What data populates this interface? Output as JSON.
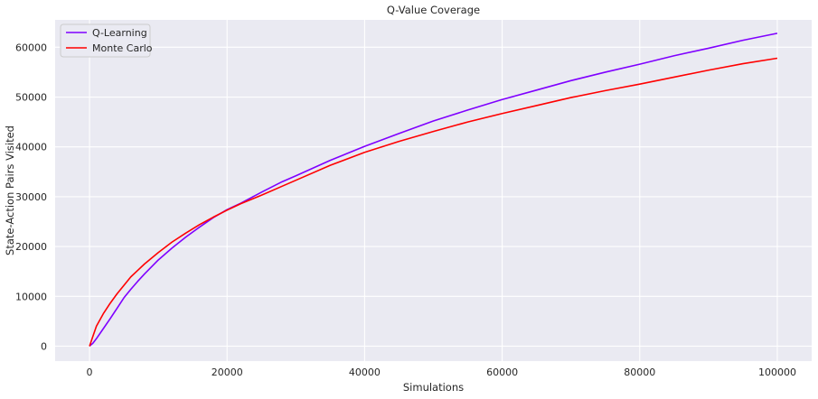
{
  "chart_data": {
    "type": "line",
    "title": "Q-Value Coverage",
    "xlabel": "Simulations",
    "ylabel": "State-Action Pairs Visited",
    "xlim": [
      -5000,
      105000
    ],
    "ylim": [
      -3000,
      65500
    ],
    "x_ticks": [
      0,
      20000,
      40000,
      60000,
      80000,
      100000
    ],
    "y_ticks": [
      0,
      10000,
      20000,
      30000,
      40000,
      50000,
      60000
    ],
    "x_tick_labels": [
      "0",
      "20000",
      "40000",
      "60000",
      "80000",
      "100000"
    ],
    "y_tick_labels": [
      "0",
      "10000",
      "20000",
      "30000",
      "40000",
      "50000",
      "60000"
    ],
    "grid": true,
    "background": "#eaeaf2",
    "legend_position": "top-left",
    "series": [
      {
        "name": "Q-Learning",
        "color": "#7f00ff",
        "x": [
          0,
          500,
          1000,
          2000,
          3000,
          4000,
          5000,
          6000,
          7000,
          8000,
          10000,
          12000,
          14000,
          16000,
          18000,
          20000,
          22000,
          25000,
          28000,
          30000,
          35000,
          40000,
          45000,
          50000,
          55000,
          60000,
          65000,
          70000,
          75000,
          80000,
          85000,
          90000,
          95000,
          100000
        ],
        "y": [
          0,
          600,
          1500,
          3500,
          5500,
          7600,
          9700,
          11400,
          13000,
          14500,
          17300,
          19700,
          21900,
          23900,
          25800,
          27400,
          28700,
          30900,
          33000,
          34200,
          37300,
          40100,
          42700,
          45200,
          47400,
          49500,
          51400,
          53300,
          55000,
          56600,
          58300,
          59800,
          61400,
          62800
        ]
      },
      {
        "name": "Monte Carlo",
        "color": "#ff0000",
        "x": [
          0,
          500,
          1000,
          2000,
          3000,
          4000,
          5000,
          6000,
          7000,
          8000,
          10000,
          12000,
          14000,
          16000,
          18000,
          20000,
          22000,
          25000,
          28000,
          30000,
          35000,
          40000,
          45000,
          50000,
          55000,
          60000,
          65000,
          70000,
          75000,
          80000,
          85000,
          90000,
          95000,
          100000
        ],
        "y": [
          0,
          2000,
          4000,
          6500,
          8600,
          10500,
          12200,
          13900,
          15200,
          16500,
          18800,
          20900,
          22700,
          24400,
          25900,
          27300,
          28600,
          30300,
          32100,
          33300,
          36300,
          38900,
          41100,
          43100,
          45000,
          46700,
          48300,
          49900,
          51300,
          52600,
          54000,
          55400,
          56700,
          57800
        ]
      }
    ]
  }
}
